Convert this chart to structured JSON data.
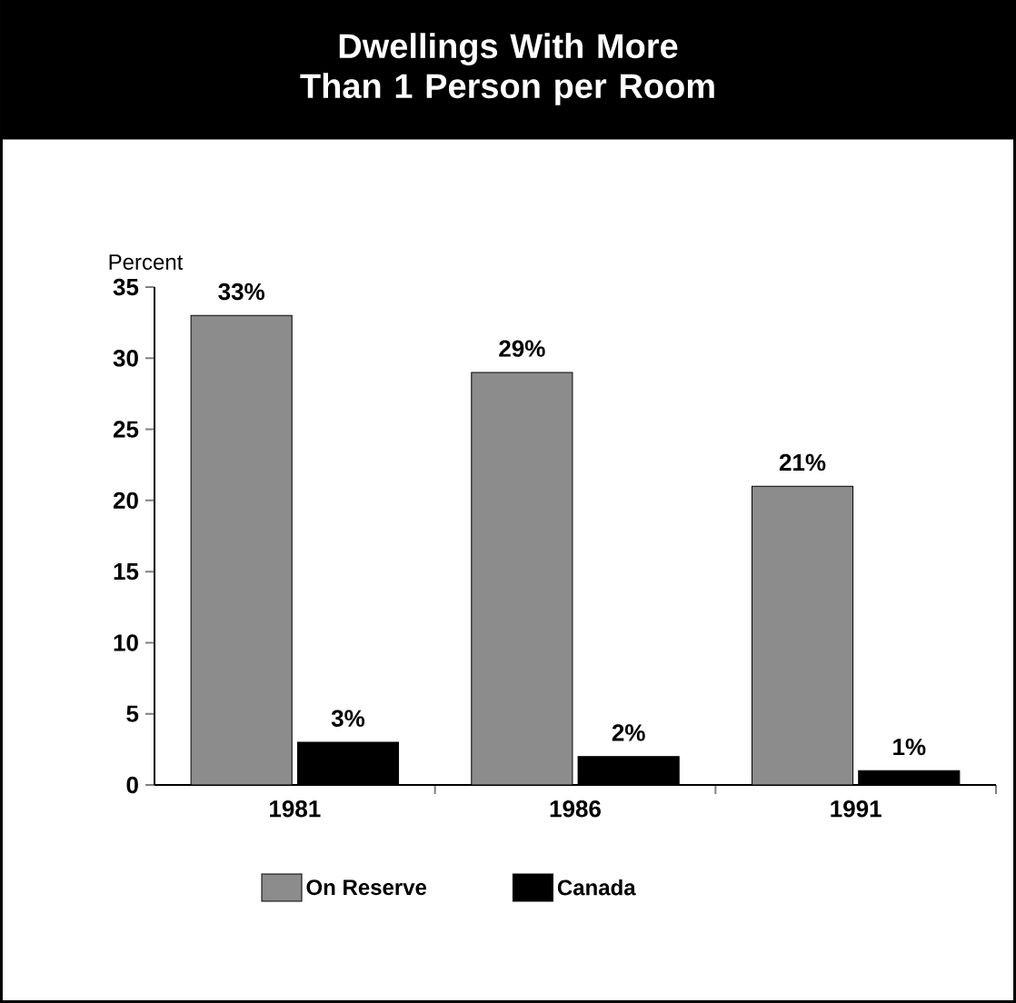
{
  "chart_data": {
    "type": "bar",
    "title": "Dwellings With More Than 1 Person per Room",
    "ylabel": "Percent",
    "categories": [
      "1981",
      "1986",
      "1991"
    ],
    "series": [
      {
        "name": "On Reserve",
        "color": "#8c8c8c",
        "values": [
          33,
          29,
          21
        ],
        "value_labels": [
          "33%",
          "29%",
          "21%"
        ]
      },
      {
        "name": "Canada",
        "color": "#000000",
        "values": [
          3,
          2,
          1
        ],
        "value_labels": [
          "3%",
          "2%",
          "1%"
        ]
      }
    ],
    "ylim": [
      0,
      35
    ],
    "yticks": [
      0,
      5,
      10,
      15,
      20,
      25,
      30,
      35
    ],
    "legend": "bottom"
  }
}
